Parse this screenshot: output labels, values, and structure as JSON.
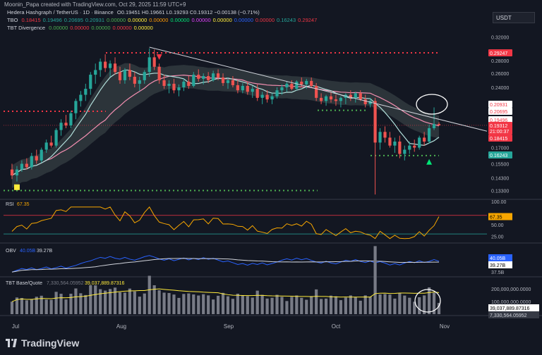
{
  "header": {
    "author_line": "Moonin_Papa created with TradingView.com, Oct 29, 2025 11:59 UTC+9",
    "symbol_line": "Hedera Hashgraph / TetherUS · 1D · Binance",
    "ohlc": "O0.19451  H0.19661  L0.19293  C0.19312  −0.00138 (−0.71%)",
    "tbo_label": "TBO",
    "tbo_values": [
      "0.18415",
      "0.19496",
      "0.20695",
      "0.20931",
      "0.00000",
      "0.00000",
      "0.00000",
      "0.00000",
      "0.00000",
      "0.00000",
      "0.00000",
      "0.00000",
      "0.16243",
      "0.29247"
    ],
    "tbt_div_label": "TBT Divergence",
    "tbt_div_values": [
      "0.00000",
      "0.00000",
      "0.00000",
      "0.00000",
      "0.00000"
    ],
    "currency_box": "USDT"
  },
  "colors": {
    "bg": "#131722",
    "up": "#26a69a",
    "down": "#ef5350",
    "grid": "#2a2e39",
    "rsi_line": "#f7a600",
    "obv_line": "#2962ff",
    "obv_ma": "#d1d4dc",
    "vol_ma": "#ffeb3b",
    "fast_ma": "#b2dfdb",
    "slow_ma": "#f48fb1",
    "green_dot": "#4caf50",
    "red_dot": "#f23645"
  },
  "price_axis": {
    "ticks": [
      "0.32000",
      "0.28000",
      "0.26000",
      "0.24000",
      "0.17000",
      "0.15500",
      "0.14300",
      "0.13300"
    ],
    "labels": [
      {
        "text": "0.29247",
        "bg": "#f23645"
      },
      {
        "text": "0.20931",
        "bg": "#ffffff",
        "fg": "#f23645"
      },
      {
        "text": "0.20695",
        "bg": "#ffffff",
        "fg": "#f23645"
      },
      {
        "text": "0.19496",
        "bg": "#ffffff",
        "fg": "#f23645"
      },
      {
        "text": "0.19312",
        "bg": "#f23645"
      },
      {
        "text": "21:00:37",
        "bg": "#f23645"
      },
      {
        "text": "0.18415",
        "bg": "#f23645"
      },
      {
        "text": "0.16243",
        "bg": "#26a69a"
      }
    ]
  },
  "rsi": {
    "label": "RSI",
    "value": "67.35",
    "ticks": [
      "100.00",
      "50.00",
      "25.00"
    ],
    "badge_top": "75.00"
  },
  "obv": {
    "label": "OBV",
    "value1": "40.05B",
    "value2": "39.27B",
    "ticks": [
      "37.5B"
    ],
    "badges": [
      "40.05B",
      "39.27B"
    ]
  },
  "vol": {
    "label": "TBT Base/Quote",
    "value1": "7,330,564.05952",
    "value2": "39,037,889.87316",
    "ticks": [
      "200,000,000.0000",
      "100,000,000.0000"
    ],
    "badges": [
      "39,037,889.87316",
      "7,330,564.05952"
    ]
  },
  "time_axis": [
    "Jul",
    "Aug",
    "Sep",
    "Oct",
    "Nov"
  ],
  "brand": "TradingView",
  "chart_data": {
    "type": "candlestick",
    "title": "Hedera Hashgraph / TetherUS · 1D · Binance",
    "ylim": [
      0.128,
      0.33
    ],
    "log_scale": true,
    "candles": [
      [
        0.15,
        0.155,
        0.142,
        0.145
      ],
      [
        0.145,
        0.153,
        0.14,
        0.15
      ],
      [
        0.15,
        0.158,
        0.148,
        0.155
      ],
      [
        0.155,
        0.16,
        0.15,
        0.152
      ],
      [
        0.152,
        0.165,
        0.15,
        0.162
      ],
      [
        0.162,
        0.168,
        0.155,
        0.158
      ],
      [
        0.158,
        0.17,
        0.156,
        0.168
      ],
      [
        0.168,
        0.178,
        0.165,
        0.175
      ],
      [
        0.175,
        0.182,
        0.17,
        0.172
      ],
      [
        0.172,
        0.19,
        0.17,
        0.188
      ],
      [
        0.188,
        0.2,
        0.182,
        0.196
      ],
      [
        0.196,
        0.205,
        0.19,
        0.193
      ],
      [
        0.193,
        0.21,
        0.19,
        0.207
      ],
      [
        0.207,
        0.225,
        0.2,
        0.222
      ],
      [
        0.222,
        0.235,
        0.215,
        0.23
      ],
      [
        0.23,
        0.245,
        0.222,
        0.238
      ],
      [
        0.238,
        0.262,
        0.23,
        0.258
      ],
      [
        0.258,
        0.275,
        0.245,
        0.265
      ],
      [
        0.265,
        0.283,
        0.255,
        0.278
      ],
      [
        0.278,
        0.29,
        0.262,
        0.268
      ],
      [
        0.268,
        0.28,
        0.255,
        0.275
      ],
      [
        0.275,
        0.285,
        0.258,
        0.262
      ],
      [
        0.262,
        0.27,
        0.245,
        0.25
      ],
      [
        0.25,
        0.268,
        0.245,
        0.265
      ],
      [
        0.265,
        0.275,
        0.25,
        0.255
      ],
      [
        0.255,
        0.262,
        0.24,
        0.245
      ],
      [
        0.245,
        0.255,
        0.235,
        0.25
      ],
      [
        0.25,
        0.265,
        0.245,
        0.262
      ],
      [
        0.262,
        0.3,
        0.255,
        0.285
      ],
      [
        0.285,
        0.298,
        0.265,
        0.27
      ],
      [
        0.27,
        0.275,
        0.245,
        0.25
      ],
      [
        0.25,
        0.258,
        0.238,
        0.242
      ],
      [
        0.242,
        0.25,
        0.232,
        0.245
      ],
      [
        0.245,
        0.252,
        0.232,
        0.236
      ],
      [
        0.236,
        0.244,
        0.228,
        0.24
      ],
      [
        0.24,
        0.252,
        0.235,
        0.248
      ],
      [
        0.248,
        0.256,
        0.238,
        0.242
      ],
      [
        0.242,
        0.262,
        0.24,
        0.258
      ],
      [
        0.258,
        0.266,
        0.248,
        0.252
      ],
      [
        0.252,
        0.26,
        0.244,
        0.256
      ],
      [
        0.256,
        0.262,
        0.246,
        0.25
      ],
      [
        0.25,
        0.264,
        0.248,
        0.26
      ],
      [
        0.26,
        0.266,
        0.25,
        0.254
      ],
      [
        0.254,
        0.26,
        0.242,
        0.246
      ],
      [
        0.246,
        0.254,
        0.238,
        0.25
      ],
      [
        0.25,
        0.256,
        0.24,
        0.243
      ],
      [
        0.243,
        0.25,
        0.232,
        0.236
      ],
      [
        0.236,
        0.246,
        0.232,
        0.242
      ],
      [
        0.242,
        0.248,
        0.23,
        0.234
      ],
      [
        0.234,
        0.242,
        0.226,
        0.238
      ],
      [
        0.238,
        0.244,
        0.222,
        0.226
      ],
      [
        0.226,
        0.234,
        0.218,
        0.23
      ],
      [
        0.23,
        0.236,
        0.22,
        0.224
      ],
      [
        0.224,
        0.232,
        0.218,
        0.228
      ],
      [
        0.228,
        0.24,
        0.225,
        0.236
      ],
      [
        0.236,
        0.244,
        0.23,
        0.24
      ],
      [
        0.24,
        0.248,
        0.234,
        0.245
      ],
      [
        0.245,
        0.25,
        0.236,
        0.238
      ],
      [
        0.238,
        0.25,
        0.236,
        0.248
      ],
      [
        0.248,
        0.254,
        0.24,
        0.244
      ],
      [
        0.244,
        0.252,
        0.238,
        0.249
      ],
      [
        0.249,
        0.254,
        0.24,
        0.242
      ],
      [
        0.242,
        0.246,
        0.222,
        0.226
      ],
      [
        0.226,
        0.232,
        0.218,
        0.222
      ],
      [
        0.222,
        0.23,
        0.216,
        0.228
      ],
      [
        0.228,
        0.234,
        0.22,
        0.224
      ],
      [
        0.224,
        0.23,
        0.216,
        0.222
      ],
      [
        0.222,
        0.228,
        0.214,
        0.226
      ],
      [
        0.226,
        0.232,
        0.218,
        0.23
      ],
      [
        0.23,
        0.236,
        0.222,
        0.226
      ],
      [
        0.226,
        0.234,
        0.22,
        0.232
      ],
      [
        0.232,
        0.236,
        0.222,
        0.224
      ],
      [
        0.224,
        0.23,
        0.214,
        0.218
      ],
      [
        0.218,
        0.226,
        0.214,
        0.222
      ],
      [
        0.222,
        0.226,
        0.13,
        0.175
      ],
      [
        0.175,
        0.19,
        0.168,
        0.186
      ],
      [
        0.186,
        0.192,
        0.175,
        0.18
      ],
      [
        0.18,
        0.186,
        0.17,
        0.172
      ],
      [
        0.172,
        0.18,
        0.165,
        0.176
      ],
      [
        0.176,
        0.182,
        0.16,
        0.164
      ],
      [
        0.164,
        0.172,
        0.158,
        0.168
      ],
      [
        0.168,
        0.176,
        0.164,
        0.172
      ],
      [
        0.172,
        0.178,
        0.166,
        0.17
      ],
      [
        0.17,
        0.182,
        0.168,
        0.18
      ],
      [
        0.18,
        0.186,
        0.172,
        0.176
      ],
      [
        0.176,
        0.194,
        0.174,
        0.19
      ],
      [
        0.19,
        0.214,
        0.188,
        0.1945
      ],
      [
        0.1945,
        0.1966,
        0.1929,
        0.1931
      ]
    ],
    "trendline": {
      "from": [
        28,
        0.302
      ],
      "to": [
        87,
        0.196
      ]
    },
    "horizontal_levels": [
      0.29247,
      0.20931,
      0.16243,
      0.133
    ]
  }
}
